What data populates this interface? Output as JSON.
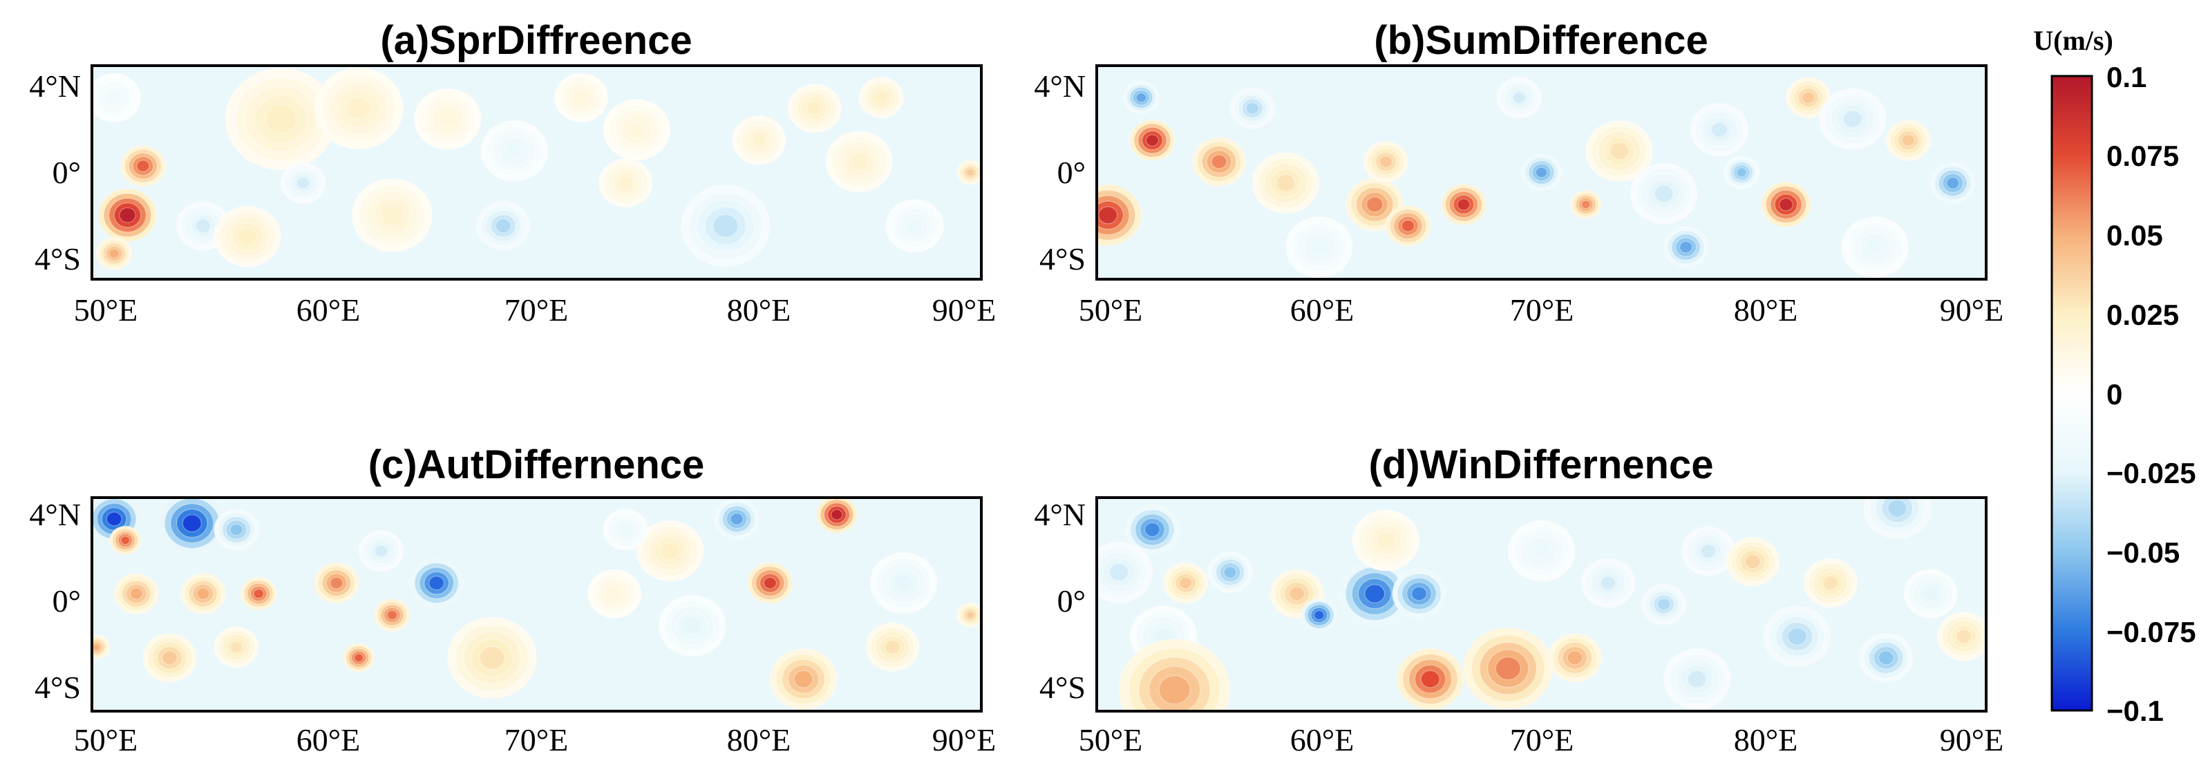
{
  "chart_data": {
    "type": "heatmap",
    "colorbar": {
      "label": "U(m/s)",
      "range": [
        -0.1,
        0.1
      ],
      "ticks": [
        "0.1",
        "0.075",
        "0.05",
        "0.025",
        "0",
        "−0.025",
        "−0.05",
        "−0.075",
        "−0.1"
      ],
      "tick_values": [
        0.1,
        0.075,
        0.05,
        0.025,
        0,
        -0.025,
        -0.05,
        -0.075,
        -0.1
      ],
      "colormap": "RdBu_r",
      "stops": [
        "#0a1ad2",
        "#2e7be0",
        "#8cc6ee",
        "#e6f6fb",
        "#ffffff",
        "#fdf0c6",
        "#f6b07a",
        "#e34a33",
        "#b2182b"
      ]
    },
    "x_ticks": [
      "50°E",
      "60°E",
      "70°E",
      "80°E",
      "90°E"
    ],
    "x_values": [
      50,
      60,
      70,
      80,
      90
    ],
    "y_ticks": [
      "4°N",
      "0°",
      "4°S"
    ],
    "y_values": [
      4,
      0,
      -4
    ],
    "xlim": [
      50,
      90
    ],
    "ylim": [
      -5,
      5
    ],
    "panels": [
      {
        "title": "(a)SprDiffreence",
        "blobs": [
          {
            "x": 51.6,
            "y": -2.0,
            "r": 1.3,
            "v": 0.095
          },
          {
            "x": 52.3,
            "y": 0.3,
            "r": 1.0,
            "v": 0.07
          },
          {
            "x": 51.0,
            "y": -3.8,
            "r": 0.8,
            "v": 0.05
          },
          {
            "x": 55.0,
            "y": -2.5,
            "r": 1.2,
            "v": -0.03
          },
          {
            "x": 57.0,
            "y": -3.0,
            "r": 1.5,
            "v": 0.025
          },
          {
            "x": 58.5,
            "y": 2.5,
            "r": 2.5,
            "v": 0.025
          },
          {
            "x": 62.0,
            "y": 3.0,
            "r": 2.0,
            "v": 0.022
          },
          {
            "x": 59.5,
            "y": -0.5,
            "r": 1.0,
            "v": -0.03
          },
          {
            "x": 63.5,
            "y": -2.0,
            "r": 1.8,
            "v": 0.02
          },
          {
            "x": 66.0,
            "y": 2.5,
            "r": 1.5,
            "v": 0.015
          },
          {
            "x": 69.0,
            "y": 1.0,
            "r": 1.5,
            "v": -0.02
          },
          {
            "x": 68.5,
            "y": -2.5,
            "r": 1.2,
            "v": -0.04
          },
          {
            "x": 72.0,
            "y": 3.5,
            "r": 1.2,
            "v": 0.015
          },
          {
            "x": 74.5,
            "y": 2.0,
            "r": 1.5,
            "v": 0.015
          },
          {
            "x": 74.0,
            "y": -0.5,
            "r": 1.2,
            "v": 0.02
          },
          {
            "x": 78.5,
            "y": -2.5,
            "r": 2.0,
            "v": -0.035
          },
          {
            "x": 80.0,
            "y": 1.5,
            "r": 1.2,
            "v": 0.02
          },
          {
            "x": 82.5,
            "y": 3.0,
            "r": 1.2,
            "v": 0.025
          },
          {
            "x": 84.5,
            "y": 0.5,
            "r": 1.5,
            "v": 0.02
          },
          {
            "x": 85.5,
            "y": 3.5,
            "r": 1.0,
            "v": 0.025
          },
          {
            "x": 87.0,
            "y": -2.5,
            "r": 1.3,
            "v": -0.02
          },
          {
            "x": 89.5,
            "y": 0.0,
            "r": 0.6,
            "v": 0.04
          },
          {
            "x": 51.0,
            "y": 3.5,
            "r": 1.2,
            "v": -0.015
          }
        ]
      },
      {
        "title": "(b)SumDifference",
        "blobs": [
          {
            "x": 52.5,
            "y": 1.5,
            "r": 1.0,
            "v": 0.09
          },
          {
            "x": 50.5,
            "y": -2.0,
            "r": 1.5,
            "v": 0.085
          },
          {
            "x": 55.5,
            "y": 0.5,
            "r": 1.2,
            "v": 0.06
          },
          {
            "x": 52.0,
            "y": 3.5,
            "r": 0.8,
            "v": -0.06
          },
          {
            "x": 57.0,
            "y": 3.0,
            "r": 1.0,
            "v": -0.04
          },
          {
            "x": 58.5,
            "y": -0.5,
            "r": 1.5,
            "v": 0.03
          },
          {
            "x": 62.5,
            "y": -1.5,
            "r": 1.3,
            "v": 0.06
          },
          {
            "x": 64.0,
            "y": -2.5,
            "r": 1.0,
            "v": 0.07
          },
          {
            "x": 66.5,
            "y": -1.5,
            "r": 1.0,
            "v": 0.085
          },
          {
            "x": 63.0,
            "y": 0.5,
            "r": 1.0,
            "v": 0.04
          },
          {
            "x": 69.0,
            "y": 3.5,
            "r": 1.0,
            "v": -0.03
          },
          {
            "x": 70.0,
            "y": 0.0,
            "r": 0.9,
            "v": -0.06
          },
          {
            "x": 72.0,
            "y": -1.5,
            "r": 0.7,
            "v": 0.06
          },
          {
            "x": 73.5,
            "y": 1.0,
            "r": 1.5,
            "v": 0.03
          },
          {
            "x": 75.5,
            "y": -1.0,
            "r": 1.5,
            "v": -0.03
          },
          {
            "x": 76.5,
            "y": -3.5,
            "r": 1.0,
            "v": -0.06
          },
          {
            "x": 78.0,
            "y": 2.0,
            "r": 1.3,
            "v": -0.03
          },
          {
            "x": 81.0,
            "y": -1.5,
            "r": 1.1,
            "v": 0.09
          },
          {
            "x": 79.0,
            "y": 0.0,
            "r": 0.8,
            "v": -0.05
          },
          {
            "x": 82.0,
            "y": 3.5,
            "r": 1.0,
            "v": 0.04
          },
          {
            "x": 84.0,
            "y": 2.5,
            "r": 1.5,
            "v": -0.03
          },
          {
            "x": 86.5,
            "y": 1.5,
            "r": 1.0,
            "v": 0.04
          },
          {
            "x": 88.5,
            "y": -0.5,
            "r": 1.0,
            "v": -0.06
          },
          {
            "x": 85.0,
            "y": -3.5,
            "r": 1.5,
            "v": -0.02
          },
          {
            "x": 60.0,
            "y": -3.5,
            "r": 1.5,
            "v": -0.02
          }
        ]
      },
      {
        "title": "(c)AutDiffernence",
        "blobs": [
          {
            "x": 51.0,
            "y": 4.0,
            "r": 1.2,
            "v": -0.09
          },
          {
            "x": 54.5,
            "y": 3.8,
            "r": 1.5,
            "v": -0.09
          },
          {
            "x": 56.5,
            "y": 3.5,
            "r": 1.0,
            "v": -0.05
          },
          {
            "x": 51.5,
            "y": 3.0,
            "r": 0.7,
            "v": 0.07
          },
          {
            "x": 52.0,
            "y": 0.5,
            "r": 1.0,
            "v": 0.05
          },
          {
            "x": 55.0,
            "y": 0.5,
            "r": 1.0,
            "v": 0.05
          },
          {
            "x": 57.5,
            "y": 0.5,
            "r": 0.8,
            "v": 0.07
          },
          {
            "x": 53.5,
            "y": -2.5,
            "r": 1.2,
            "v": 0.04
          },
          {
            "x": 56.5,
            "y": -2.0,
            "r": 1.0,
            "v": 0.03
          },
          {
            "x": 50.2,
            "y": -2.0,
            "r": 0.6,
            "v": 0.05
          },
          {
            "x": 61.0,
            "y": 1.0,
            "r": 1.0,
            "v": 0.06
          },
          {
            "x": 62.0,
            "y": -2.5,
            "r": 0.7,
            "v": 0.07
          },
          {
            "x": 63.5,
            "y": -0.5,
            "r": 0.8,
            "v": 0.065
          },
          {
            "x": 65.5,
            "y": 1.0,
            "r": 1.2,
            "v": -0.08
          },
          {
            "x": 63.0,
            "y": 2.5,
            "r": 1.0,
            "v": -0.03
          },
          {
            "x": 68.0,
            "y": -2.5,
            "r": 2.0,
            "v": 0.03
          },
          {
            "x": 73.5,
            "y": 0.5,
            "r": 1.2,
            "v": 0.015
          },
          {
            "x": 76.0,
            "y": 2.5,
            "r": 1.5,
            "v": 0.025
          },
          {
            "x": 77.0,
            "y": -1.0,
            "r": 1.5,
            "v": -0.025
          },
          {
            "x": 79.0,
            "y": 4.0,
            "r": 1.0,
            "v": -0.06
          },
          {
            "x": 80.5,
            "y": 1.0,
            "r": 1.0,
            "v": 0.08
          },
          {
            "x": 83.5,
            "y": 4.2,
            "r": 0.9,
            "v": 0.095
          },
          {
            "x": 82.0,
            "y": -3.5,
            "r": 1.5,
            "v": 0.05
          },
          {
            "x": 86.0,
            "y": -2.0,
            "r": 1.2,
            "v": 0.03
          },
          {
            "x": 86.5,
            "y": 1.0,
            "r": 1.5,
            "v": -0.025
          },
          {
            "x": 89.5,
            "y": -0.5,
            "r": 0.6,
            "v": 0.04
          },
          {
            "x": 74.0,
            "y": 3.5,
            "r": 1.0,
            "v": -0.02
          }
        ]
      },
      {
        "title": "(d)WinDiffernence",
        "blobs": [
          {
            "x": 52.5,
            "y": 3.5,
            "r": 1.2,
            "v": -0.07
          },
          {
            "x": 51.0,
            "y": 1.5,
            "r": 1.5,
            "v": -0.03
          },
          {
            "x": 54.0,
            "y": 1.0,
            "r": 1.0,
            "v": 0.04
          },
          {
            "x": 56.0,
            "y": 1.5,
            "r": 1.0,
            "v": -0.05
          },
          {
            "x": 53.0,
            "y": -1.5,
            "r": 1.5,
            "v": -0.025
          },
          {
            "x": 53.5,
            "y": -4.0,
            "r": 2.5,
            "v": 0.05
          },
          {
            "x": 59.0,
            "y": 0.5,
            "r": 1.2,
            "v": 0.04
          },
          {
            "x": 60.0,
            "y": -0.5,
            "r": 0.8,
            "v": -0.08
          },
          {
            "x": 62.5,
            "y": 0.5,
            "r": 1.6,
            "v": -0.08
          },
          {
            "x": 64.5,
            "y": 0.5,
            "r": 1.2,
            "v": -0.07
          },
          {
            "x": 63.0,
            "y": 3.0,
            "r": 1.5,
            "v": 0.02
          },
          {
            "x": 65.0,
            "y": -3.5,
            "r": 1.5,
            "v": 0.075
          },
          {
            "x": 68.5,
            "y": -3.0,
            "r": 2.0,
            "v": 0.06
          },
          {
            "x": 71.5,
            "y": -2.5,
            "r": 1.2,
            "v": 0.05
          },
          {
            "x": 70.0,
            "y": 2.5,
            "r": 1.5,
            "v": -0.02
          },
          {
            "x": 73.0,
            "y": 1.0,
            "r": 1.2,
            "v": -0.03
          },
          {
            "x": 75.5,
            "y": 0.0,
            "r": 1.0,
            "v": -0.04
          },
          {
            "x": 77.5,
            "y": 2.5,
            "r": 1.2,
            "v": -0.03
          },
          {
            "x": 79.5,
            "y": 2.0,
            "r": 1.2,
            "v": 0.035
          },
          {
            "x": 81.5,
            "y": -1.5,
            "r": 1.5,
            "v": -0.04
          },
          {
            "x": 83.0,
            "y": 1.0,
            "r": 1.2,
            "v": 0.03
          },
          {
            "x": 85.5,
            "y": -2.5,
            "r": 1.2,
            "v": -0.05
          },
          {
            "x": 87.5,
            "y": 0.5,
            "r": 1.2,
            "v": -0.025
          },
          {
            "x": 86.0,
            "y": 4.5,
            "r": 1.5,
            "v": -0.04
          },
          {
            "x": 89.0,
            "y": -1.5,
            "r": 1.2,
            "v": 0.03
          },
          {
            "x": 77.0,
            "y": -3.5,
            "r": 1.5,
            "v": -0.03
          }
        ]
      }
    ]
  }
}
